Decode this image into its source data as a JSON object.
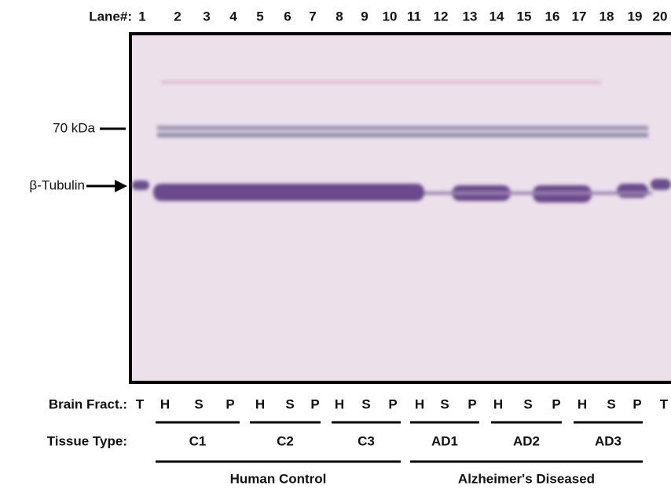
{
  "lane_header": "Lane#:",
  "lanes": [
    "1",
    "2",
    "3",
    "4",
    "5",
    "6",
    "7",
    "8",
    "9",
    "10",
    "11",
    "12",
    "13",
    "14",
    "15",
    "16",
    "17",
    "18",
    "19",
    "20"
  ],
  "markers": {
    "kda": "70 kDa",
    "tubulin": "β-Tubulin"
  },
  "fraction_header": "Brain Fract.:",
  "fractions": [
    "T",
    "H",
    "S",
    "P",
    "H",
    "S",
    "P",
    "H",
    "S",
    "P",
    "H",
    "S",
    "P",
    "H",
    "S",
    "P",
    "H",
    "S",
    "P",
    "T"
  ],
  "tissue_header": "Tissue Type:",
  "groups": [
    "C1",
    "C2",
    "C3",
    "AD1",
    "AD2",
    "AD3"
  ],
  "supergroups": [
    "Human Control",
    "Alzheimer's Diseased"
  ]
}
